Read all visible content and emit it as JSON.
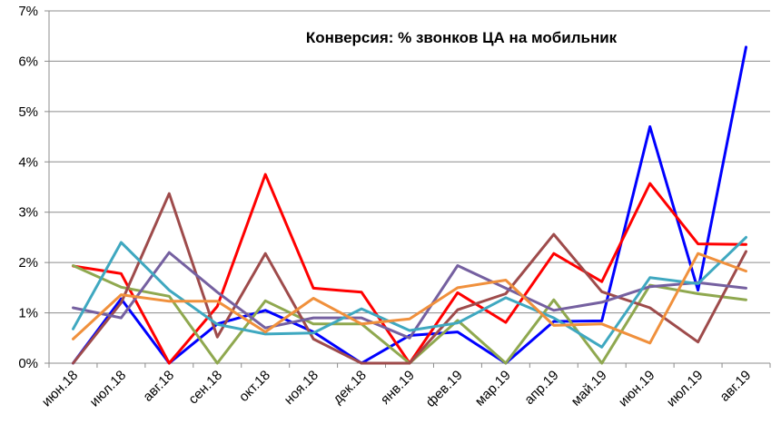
{
  "chart_data": {
    "type": "line",
    "title": "Конверсия: % звонков ЦА на мобильник",
    "xlabel": "",
    "ylabel": "",
    "categories": [
      "июн.18",
      "июл.18",
      "авг.18",
      "сен.18",
      "окт.18",
      "ноя.18",
      "дек.18",
      "янв.19",
      "фев.19",
      "мар.19",
      "апр.19",
      "май.19",
      "июн.19",
      "июл.19",
      "авг.19"
    ],
    "ylim": [
      0,
      7
    ],
    "yticks": [
      "0%",
      "1%",
      "2%",
      "3%",
      "4%",
      "5%",
      "6%",
      "7%"
    ],
    "grid": "horizontal",
    "legend": "none",
    "series": [
      {
        "color": "#0000ff",
        "values": [
          0,
          1.28,
          0,
          0.78,
          1.05,
          0.62,
          0,
          0.55,
          0.62,
          0,
          0.83,
          0.84,
          4.7,
          1.45,
          6.28
        ]
      },
      {
        "color": "#ff0000",
        "values": [
          1.93,
          1.78,
          0,
          1.13,
          3.75,
          1.49,
          1.41,
          0,
          1.4,
          0.81,
          2.18,
          1.62,
          3.57,
          2.37,
          2.36
        ]
      },
      {
        "color": "#8fa84f",
        "values": [
          1.94,
          1.51,
          1.33,
          0,
          1.24,
          0.78,
          0.78,
          0,
          0.85,
          0,
          1.26,
          0,
          1.55,
          1.38,
          1.26
        ]
      },
      {
        "color": "#9e4b4b",
        "values": [
          0,
          1.2,
          3.37,
          0.52,
          2.18,
          0.48,
          0,
          0,
          1.06,
          1.38,
          2.56,
          1.42,
          1.1,
          0.42,
          2.22
        ]
      },
      {
        "color": "#7560a0",
        "values": [
          1.1,
          0.9,
          2.2,
          1.41,
          0.7,
          0.9,
          0.9,
          0.5,
          1.94,
          1.49,
          1.05,
          1.21,
          1.52,
          1.6,
          1.49
        ]
      },
      {
        "color": "#3fa8c0",
        "values": [
          0.68,
          2.4,
          1.45,
          0.77,
          0.58,
          0.6,
          1.08,
          0.65,
          0.8,
          1.3,
          0.9,
          0.32,
          1.7,
          1.58,
          2.5
        ]
      },
      {
        "color": "#f0903c",
        "values": [
          0.48,
          1.36,
          1.23,
          1.23,
          0.62,
          1.29,
          0.78,
          0.88,
          1.5,
          1.65,
          0.75,
          0.78,
          0.4,
          2.18,
          1.83
        ]
      }
    ]
  }
}
